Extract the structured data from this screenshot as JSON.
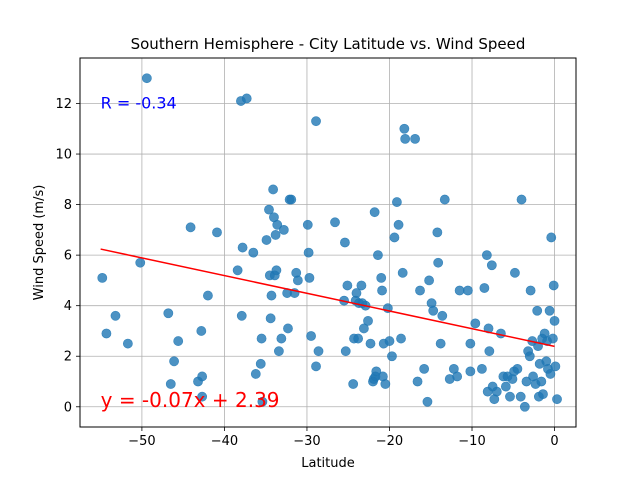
{
  "chart_data": {
    "type": "scatter",
    "title": "Southern Hemisphere - City Latitude vs. Wind Speed",
    "xlabel": "Latitude",
    "ylabel": "Wind Speed (m/s)",
    "xlim": [
      -57.5,
      2.6
    ],
    "ylim": [
      -0.8,
      13.8
    ],
    "xticks": [
      -50,
      -40,
      -30,
      -20,
      -10,
      0
    ],
    "yticks": [
      0,
      2,
      4,
      6,
      8,
      10,
      12
    ],
    "grid": true,
    "point_color": "#1f77b4",
    "line_color": "#ff0000",
    "regression": {
      "slope": -0.07,
      "intercept": 2.39,
      "x_range": [
        -55,
        0
      ]
    },
    "annotations": [
      {
        "text": "R = -0.34",
        "x": -55,
        "y": 11.8,
        "color": "#0000ff",
        "size": "medium"
      },
      {
        "text": "y = -0.07x + 2.39",
        "x": -55,
        "y": 0.0,
        "color": "#ff0000",
        "size": "large"
      }
    ],
    "points": [
      [
        -54.8,
        5.1
      ],
      [
        -54.3,
        2.9
      ],
      [
        -53.2,
        3.6
      ],
      [
        -51.7,
        2.5
      ],
      [
        -50.2,
        5.7
      ],
      [
        -49.4,
        13.0
      ],
      [
        -46.8,
        3.7
      ],
      [
        -46.5,
        0.9
      ],
      [
        -46.1,
        1.8
      ],
      [
        -45.6,
        2.6
      ],
      [
        -44.1,
        7.1
      ],
      [
        -43.2,
        1.0
      ],
      [
        -42.8,
        3.0
      ],
      [
        -42.7,
        1.2
      ],
      [
        -42.7,
        0.4
      ],
      [
        -42.0,
        4.4
      ],
      [
        -40.9,
        6.9
      ],
      [
        -38.4,
        5.4
      ],
      [
        -38.0,
        12.1
      ],
      [
        -37.8,
        6.3
      ],
      [
        -37.9,
        3.6
      ],
      [
        -37.3,
        12.2
      ],
      [
        -36.5,
        6.1
      ],
      [
        -36.2,
        1.3
      ],
      [
        -35.6,
        1.7
      ],
      [
        -35.5,
        2.7
      ],
      [
        -35.4,
        0.2
      ],
      [
        -34.9,
        6.6
      ],
      [
        -34.6,
        7.8
      ],
      [
        -34.5,
        5.2
      ],
      [
        -34.3,
        4.4
      ],
      [
        -34.4,
        3.5
      ],
      [
        -34.1,
        8.6
      ],
      [
        -34.0,
        7.5
      ],
      [
        -33.9,
        5.2
      ],
      [
        -33.8,
        6.8
      ],
      [
        -33.6,
        7.2
      ],
      [
        -33.7,
        5.4
      ],
      [
        -33.4,
        2.2
      ],
      [
        -33.1,
        2.7
      ],
      [
        -32.8,
        7.0
      ],
      [
        -32.4,
        4.5
      ],
      [
        -32.3,
        3.1
      ],
      [
        -32.1,
        8.2
      ],
      [
        -31.9,
        8.2
      ],
      [
        -31.5,
        4.5
      ],
      [
        -31.3,
        5.3
      ],
      [
        -31.1,
        5.0
      ],
      [
        -29.9,
        7.2
      ],
      [
        -29.8,
        6.1
      ],
      [
        -29.7,
        5.1
      ],
      [
        -29.5,
        2.8
      ],
      [
        -28.9,
        11.3
      ],
      [
        -28.9,
        1.6
      ],
      [
        -28.6,
        2.2
      ],
      [
        -26.6,
        7.3
      ],
      [
        -25.5,
        4.2
      ],
      [
        -25.4,
        6.5
      ],
      [
        -25.3,
        2.2
      ],
      [
        -25.1,
        4.8
      ],
      [
        -24.4,
        0.9
      ],
      [
        -24.3,
        2.7
      ],
      [
        -24.1,
        4.2
      ],
      [
        -24.0,
        4.5
      ],
      [
        -23.8,
        2.7
      ],
      [
        -23.7,
        4.1
      ],
      [
        -23.4,
        4.8
      ],
      [
        -23.3,
        4.1
      ],
      [
        -23.1,
        3.1
      ],
      [
        -22.9,
        4.0
      ],
      [
        -22.6,
        3.4
      ],
      [
        -22.3,
        2.5
      ],
      [
        -22.0,
        1.0
      ],
      [
        -21.9,
        1.1
      ],
      [
        -21.8,
        7.7
      ],
      [
        -21.7,
        1.2
      ],
      [
        -21.6,
        1.4
      ],
      [
        -21.4,
        6.0
      ],
      [
        -21.0,
        5.1
      ],
      [
        -20.9,
        4.6
      ],
      [
        -20.8,
        1.2
      ],
      [
        -20.7,
        2.5
      ],
      [
        -20.5,
        0.9
      ],
      [
        -20.2,
        3.9
      ],
      [
        -20.0,
        2.6
      ],
      [
        -19.7,
        2.0
      ],
      [
        -19.4,
        6.7
      ],
      [
        -19.1,
        8.1
      ],
      [
        -18.9,
        7.2
      ],
      [
        -18.6,
        2.7
      ],
      [
        -18.4,
        5.3
      ],
      [
        -18.2,
        11.0
      ],
      [
        -18.1,
        10.6
      ],
      [
        -16.9,
        10.6
      ],
      [
        -16.6,
        1.0
      ],
      [
        -16.3,
        4.6
      ],
      [
        -15.8,
        1.5
      ],
      [
        -15.4,
        0.2
      ],
      [
        -15.2,
        5.0
      ],
      [
        -14.9,
        4.1
      ],
      [
        -14.7,
        3.8
      ],
      [
        -14.2,
        6.9
      ],
      [
        -14.1,
        5.7
      ],
      [
        -13.8,
        2.5
      ],
      [
        -13.6,
        3.6
      ],
      [
        -13.3,
        8.2
      ],
      [
        -12.7,
        1.1
      ],
      [
        -12.2,
        1.5
      ],
      [
        -11.8,
        1.2
      ],
      [
        -11.5,
        4.6
      ],
      [
        -10.5,
        4.6
      ],
      [
        -10.2,
        2.5
      ],
      [
        -10.2,
        1.4
      ],
      [
        -9.6,
        3.3
      ],
      [
        -8.8,
        1.5
      ],
      [
        -8.5,
        4.7
      ],
      [
        -8.2,
        6.0
      ],
      [
        -8.1,
        0.6
      ],
      [
        -8.0,
        3.1
      ],
      [
        -7.9,
        2.2
      ],
      [
        -7.6,
        5.6
      ],
      [
        -7.5,
        0.8
      ],
      [
        -7.3,
        0.3
      ],
      [
        -7.0,
        0.6
      ],
      [
        -6.5,
        2.9
      ],
      [
        -6.2,
        1.2
      ],
      [
        -5.9,
        0.8
      ],
      [
        -5.7,
        1.2
      ],
      [
        -5.4,
        0.4
      ],
      [
        -5.1,
        1.1
      ],
      [
        -4.9,
        1.4
      ],
      [
        -4.8,
        5.3
      ],
      [
        -4.5,
        1.5
      ],
      [
        -4.1,
        0.4
      ],
      [
        -4.0,
        8.2
      ],
      [
        -3.6,
        0.0
      ],
      [
        -3.4,
        1.0
      ],
      [
        -3.2,
        2.2
      ],
      [
        -3.0,
        2.0
      ],
      [
        -2.9,
        4.6
      ],
      [
        -2.7,
        2.6
      ],
      [
        -2.6,
        1.2
      ],
      [
        -2.3,
        0.9
      ],
      [
        -2.1,
        3.8
      ],
      [
        -2.0,
        2.4
      ],
      [
        -1.9,
        0.4
      ],
      [
        -1.8,
        1.7
      ],
      [
        -1.6,
        1.0
      ],
      [
        -1.5,
        2.7
      ],
      [
        -1.4,
        0.5
      ],
      [
        -1.2,
        2.9
      ],
      [
        -1.0,
        1.8
      ],
      [
        -0.9,
        2.6
      ],
      [
        -0.8,
        1.5
      ],
      [
        -0.6,
        3.8
      ],
      [
        -0.5,
        1.3
      ],
      [
        -0.4,
        6.7
      ],
      [
        -0.2,
        2.7
      ],
      [
        -0.1,
        4.8
      ],
      [
        0.0,
        3.4
      ],
      [
        0.1,
        1.6
      ],
      [
        0.3,
        0.3
      ]
    ]
  }
}
